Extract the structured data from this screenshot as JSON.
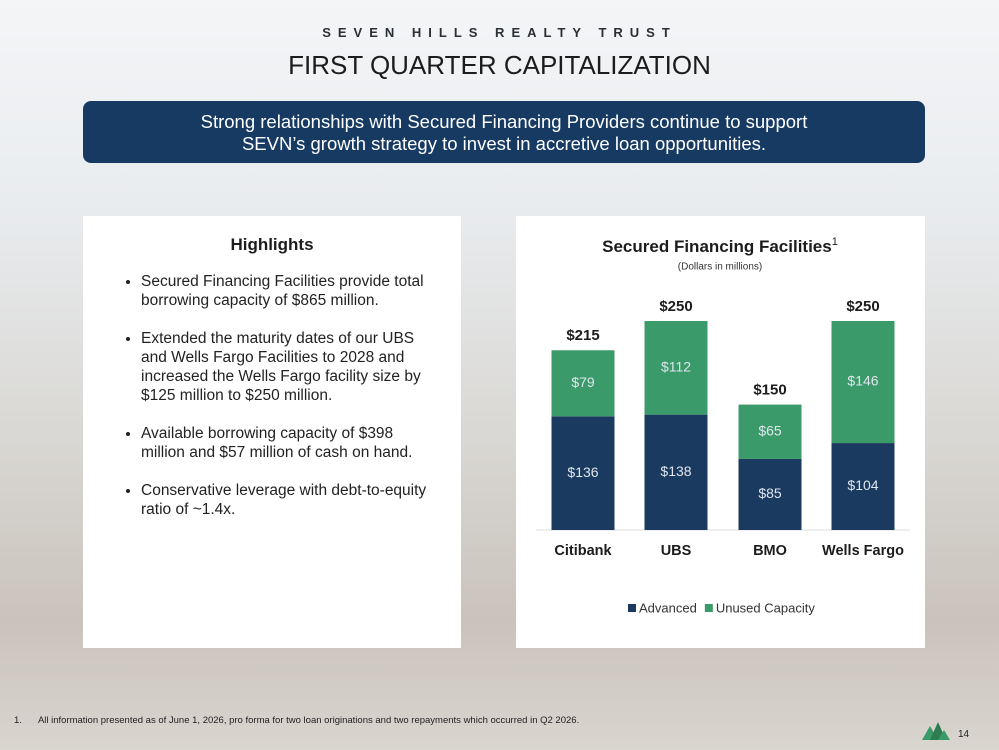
{
  "header": {
    "company": "SEVEN HILLS REALTY TRUST",
    "title": "FIRST QUARTER CAPITALIZATION"
  },
  "banner": [
    "Strong relationships with Secured Financing Providers continue to support",
    "SEVN’s growth strategy to invest in accretive loan opportunities."
  ],
  "highlights": {
    "title": "Highlights",
    "bullets": [
      "Secured Financing Facilities provide total borrowing capacity of $865 million.",
      "Extended the maturity dates of our UBS and Wells Fargo Facilities to 2028 and increased the Wells Fargo facility size by $125 million to $250 million.",
      "Available borrowing capacity of $398 million and $57 million of cash on hand.",
      "Conservative leverage with debt-to-equity ratio of ~1.4x."
    ]
  },
  "chart_data": {
    "type": "stacked_bar",
    "title": "Secured Financing Facilities",
    "title_note": "1",
    "subtitle": "(Dollars in millions)",
    "categories": [
      "Citibank",
      "UBS",
      "BMO",
      "Wells Fargo"
    ],
    "series": [
      {
        "name": "Advanced",
        "color": "#1b3a5f",
        "values": [
          136,
          138,
          85,
          104
        ],
        "value_labels": [
          "$136",
          "$138",
          "$85",
          "$104"
        ]
      },
      {
        "name": "Unused Capacity",
        "color": "#3a9a69",
        "values": [
          79,
          112,
          65,
          146
        ],
        "value_labels": [
          "$79",
          "$112",
          "$65",
          "$146"
        ]
      }
    ],
    "totals": [
      215,
      250,
      150,
      250
    ],
    "total_labels": [
      "$215",
      "$250",
      "$150",
      "$250"
    ],
    "legend": "bottom"
  },
  "footnote": {
    "marker": "1.",
    "text": "All information presented as of  June 1, 2026, pro forma for two loan originations and two repayments which occurred in Q2 2026."
  },
  "page_number": "14"
}
